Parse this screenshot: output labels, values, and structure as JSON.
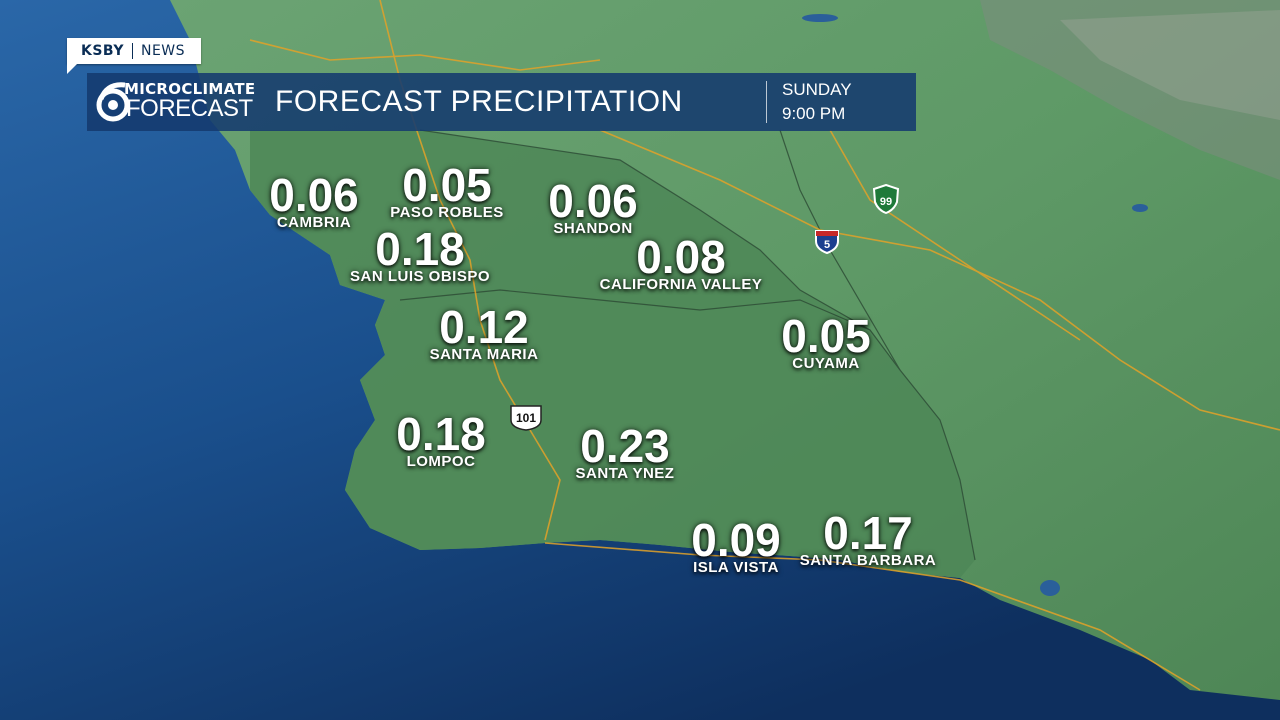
{
  "badge": {
    "station": "KSBY",
    "network": "NEWS"
  },
  "header": {
    "logo_top": "MICROCLIMATE",
    "logo_bottom": "FORECAST",
    "title": "FORECAST PRECIPITATION",
    "day": "SUNDAY",
    "time": "9:00 PM"
  },
  "highways": [
    "99",
    "5",
    "101"
  ],
  "colors": {
    "ocean": "#1a4f8c",
    "land": "#5e9966",
    "county": "#4f8a5a",
    "roads": "#e3a228",
    "header": "#143a6e"
  },
  "locations": [
    {
      "name": "CAMBRIA",
      "value": "0.06"
    },
    {
      "name": "PASO ROBLES",
      "value": "0.05"
    },
    {
      "name": "SHANDON",
      "value": "0.06"
    },
    {
      "name": "SAN LUIS OBISPO",
      "value": "0.18"
    },
    {
      "name": "CALIFORNIA VALLEY",
      "value": "0.08"
    },
    {
      "name": "SANTA MARIA",
      "value": "0.12"
    },
    {
      "name": "CUYAMA",
      "value": "0.05"
    },
    {
      "name": "LOMPOC",
      "value": "0.18"
    },
    {
      "name": "SANTA YNEZ",
      "value": "0.23"
    },
    {
      "name": "ISLA VISTA",
      "value": "0.09"
    },
    {
      "name": "SANTA BARBARA",
      "value": "0.17"
    }
  ]
}
